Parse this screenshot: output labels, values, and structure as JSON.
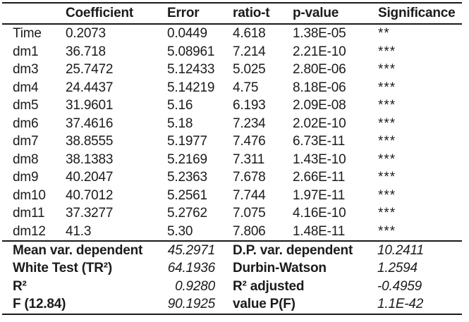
{
  "colors": {
    "background": "#ffffff",
    "text": "#1b1b1b",
    "rule": "#1a1a1a"
  },
  "table": {
    "columns": [
      "",
      "Coefficient",
      "Error",
      "ratio-t",
      "p-value",
      "Significance"
    ],
    "rows": [
      {
        "label": "Time",
        "coefficient": "0.2073",
        "error": "0.0449",
        "ratio_t": "4.618",
        "p_value": "1.38E-05",
        "significance": "**"
      },
      {
        "label": "dm1",
        "coefficient": "36.718",
        "error": "5.08961",
        "ratio_t": "7.214",
        "p_value": "2.21E-10",
        "significance": "***"
      },
      {
        "label": "dm3",
        "coefficient": "25.7472",
        "error": "5.12433",
        "ratio_t": "5.025",
        "p_value": "2.80E-06",
        "significance": "***"
      },
      {
        "label": "dm4",
        "coefficient": "24.4437",
        "error": "5.14219",
        "ratio_t": "4.75",
        "p_value": "8.18E-06",
        "significance": "***"
      },
      {
        "label": "dm5",
        "coefficient": "31.9601",
        "error": "5.16",
        "ratio_t": "6.193",
        "p_value": "2.09E-08",
        "significance": "***"
      },
      {
        "label": "dm6",
        "coefficient": "37.4616",
        "error": "5.18",
        "ratio_t": "7.234",
        "p_value": "2.02E-10",
        "significance": "***"
      },
      {
        "label": "dm7",
        "coefficient": "38.8555",
        "error": "5.1977",
        "ratio_t": "7.476",
        "p_value": "6.73E-11",
        "significance": "***"
      },
      {
        "label": "dm8",
        "coefficient": "38.1383",
        "error": "5.2169",
        "ratio_t": "7.311",
        "p_value": "1.43E-10",
        "significance": "***"
      },
      {
        "label": "dm9",
        "coefficient": "40.2047",
        "error": "5.2363",
        "ratio_t": "7.678",
        "p_value": "2.66E-11",
        "significance": "***"
      },
      {
        "label": "dm10",
        "coefficient": "40.7012",
        "error": "5.2561",
        "ratio_t": "7.744",
        "p_value": "1.97E-11",
        "significance": "***"
      },
      {
        "label": "dm11",
        "coefficient": "37.3277",
        "error": "5.2762",
        "ratio_t": "7.075",
        "p_value": "4.16E-10",
        "significance": "***"
      },
      {
        "label": "dm12",
        "coefficient": "41.3",
        "error": "5.30",
        "ratio_t": "7.806",
        "p_value": "1.48E-11",
        "significance": "***"
      }
    ]
  },
  "summary": {
    "rows": [
      {
        "label_left": "Mean var. dependent",
        "value_left": "45.2971",
        "label_right": "D.P. var. dependent",
        "value_right": "10.2411"
      },
      {
        "label_left": "White Test (TR²)",
        "value_left": "64.1936",
        "label_right": "Durbin-Watson",
        "value_right": "1.2594"
      },
      {
        "label_left": "R²",
        "value_left": "0.9280",
        "label_right": "R² adjusted",
        "value_right": "-0.4959"
      },
      {
        "label_left": "F (12.84)",
        "value_left": "90.1925",
        "label_right": "value P(F)",
        "value_right": "1.1E-42"
      }
    ]
  }
}
